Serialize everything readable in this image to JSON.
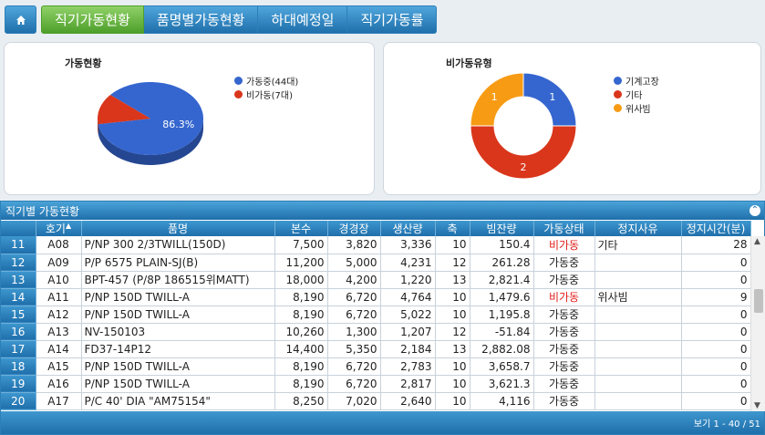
{
  "nav": {
    "tabs": [
      {
        "label": "직기가동현황",
        "active": true
      },
      {
        "label": "품명별가동현황",
        "active": false
      },
      {
        "label": "하대예정일",
        "active": false
      },
      {
        "label": "직기가동률",
        "active": false
      }
    ]
  },
  "chart_data": [
    {
      "type": "pie",
      "title": "가동현황",
      "categories": [
        "가동중(44대)",
        "비가동(7대)"
      ],
      "values": [
        44,
        7
      ],
      "colors": [
        "#3566cf",
        "#d9361b"
      ],
      "labels": [
        "86.3%",
        ""
      ],
      "legend_position": "right"
    },
    {
      "type": "pie",
      "title": "비가동유형",
      "categories": [
        "기계고장",
        "기타",
        "위사빔"
      ],
      "values": [
        1,
        2,
        1
      ],
      "colors": [
        "#3566cf",
        "#d9361b",
        "#f79b15"
      ],
      "labels": [
        "1",
        "2",
        "1"
      ],
      "legend_position": "right"
    }
  ],
  "grid": {
    "title": "직기별 가동현황",
    "columns": [
      "",
      "호기",
      "품명",
      "본수",
      "경경장",
      "생산량",
      "축",
      "빔잔량",
      "가동상태",
      "정지사유",
      "정지시간(분)"
    ],
    "rows": [
      {
        "num": "11",
        "machine": "A08",
        "product": "P/NP 300 2/3TWILL(150D)",
        "ends": "7,500",
        "warp_len": "3,820",
        "output": "3,336",
        "axis": "10",
        "beam_left": "150.4",
        "status": "비가동",
        "reason": "기타",
        "stop_time": "28"
      },
      {
        "num": "12",
        "machine": "A09",
        "product": "P/P 6575 PLAIN-SJ(B)",
        "ends": "11,200",
        "warp_len": "5,000",
        "output": "4,231",
        "axis": "12",
        "beam_left": "261.28",
        "status": "가동중",
        "reason": "",
        "stop_time": "0"
      },
      {
        "num": "13",
        "machine": "A10",
        "product": "BPT-457 (P/8P 186515위MATT)",
        "ends": "18,000",
        "warp_len": "4,200",
        "output": "1,220",
        "axis": "13",
        "beam_left": "2,821.4",
        "status": "가동중",
        "reason": "",
        "stop_time": "0"
      },
      {
        "num": "14",
        "machine": "A11",
        "product": "P/NP 150D TWILL-A",
        "ends": "8,190",
        "warp_len": "6,720",
        "output": "4,764",
        "axis": "10",
        "beam_left": "1,479.6",
        "status": "비가동",
        "reason": "위사빔",
        "stop_time": "9"
      },
      {
        "num": "15",
        "machine": "A12",
        "product": "P/NP 150D TWILL-A",
        "ends": "8,190",
        "warp_len": "6,720",
        "output": "5,022",
        "axis": "10",
        "beam_left": "1,195.8",
        "status": "가동중",
        "reason": "",
        "stop_time": "0"
      },
      {
        "num": "16",
        "machine": "A13",
        "product": "NV-150103",
        "ends": "10,260",
        "warp_len": "1,300",
        "output": "1,207",
        "axis": "12",
        "beam_left": "-51.84",
        "status": "가동중",
        "reason": "",
        "stop_time": "0"
      },
      {
        "num": "17",
        "machine": "A14",
        "product": "FD37-14P12",
        "ends": "14,400",
        "warp_len": "5,350",
        "output": "2,184",
        "axis": "13",
        "beam_left": "2,882.08",
        "status": "가동중",
        "reason": "",
        "stop_time": "0"
      },
      {
        "num": "18",
        "machine": "A15",
        "product": "P/NP 150D TWILL-A",
        "ends": "8,190",
        "warp_len": "6,720",
        "output": "2,783",
        "axis": "10",
        "beam_left": "3,658.7",
        "status": "가동중",
        "reason": "",
        "stop_time": "0"
      },
      {
        "num": "19",
        "machine": "A16",
        "product": "P/NP 150D TWILL-A",
        "ends": "8,190",
        "warp_len": "6,720",
        "output": "2,817",
        "axis": "10",
        "beam_left": "3,621.3",
        "status": "가동중",
        "reason": "",
        "stop_time": "0"
      },
      {
        "num": "20",
        "machine": "A17",
        "product": "P/C 40' DIA    \"AM75154\"",
        "ends": "8,250",
        "warp_len": "7,020",
        "output": "2,640",
        "axis": "10",
        "beam_left": "4,116",
        "status": "가동중",
        "reason": "",
        "stop_time": "0"
      }
    ],
    "footer": "보기 1 - 40 / 51"
  }
}
